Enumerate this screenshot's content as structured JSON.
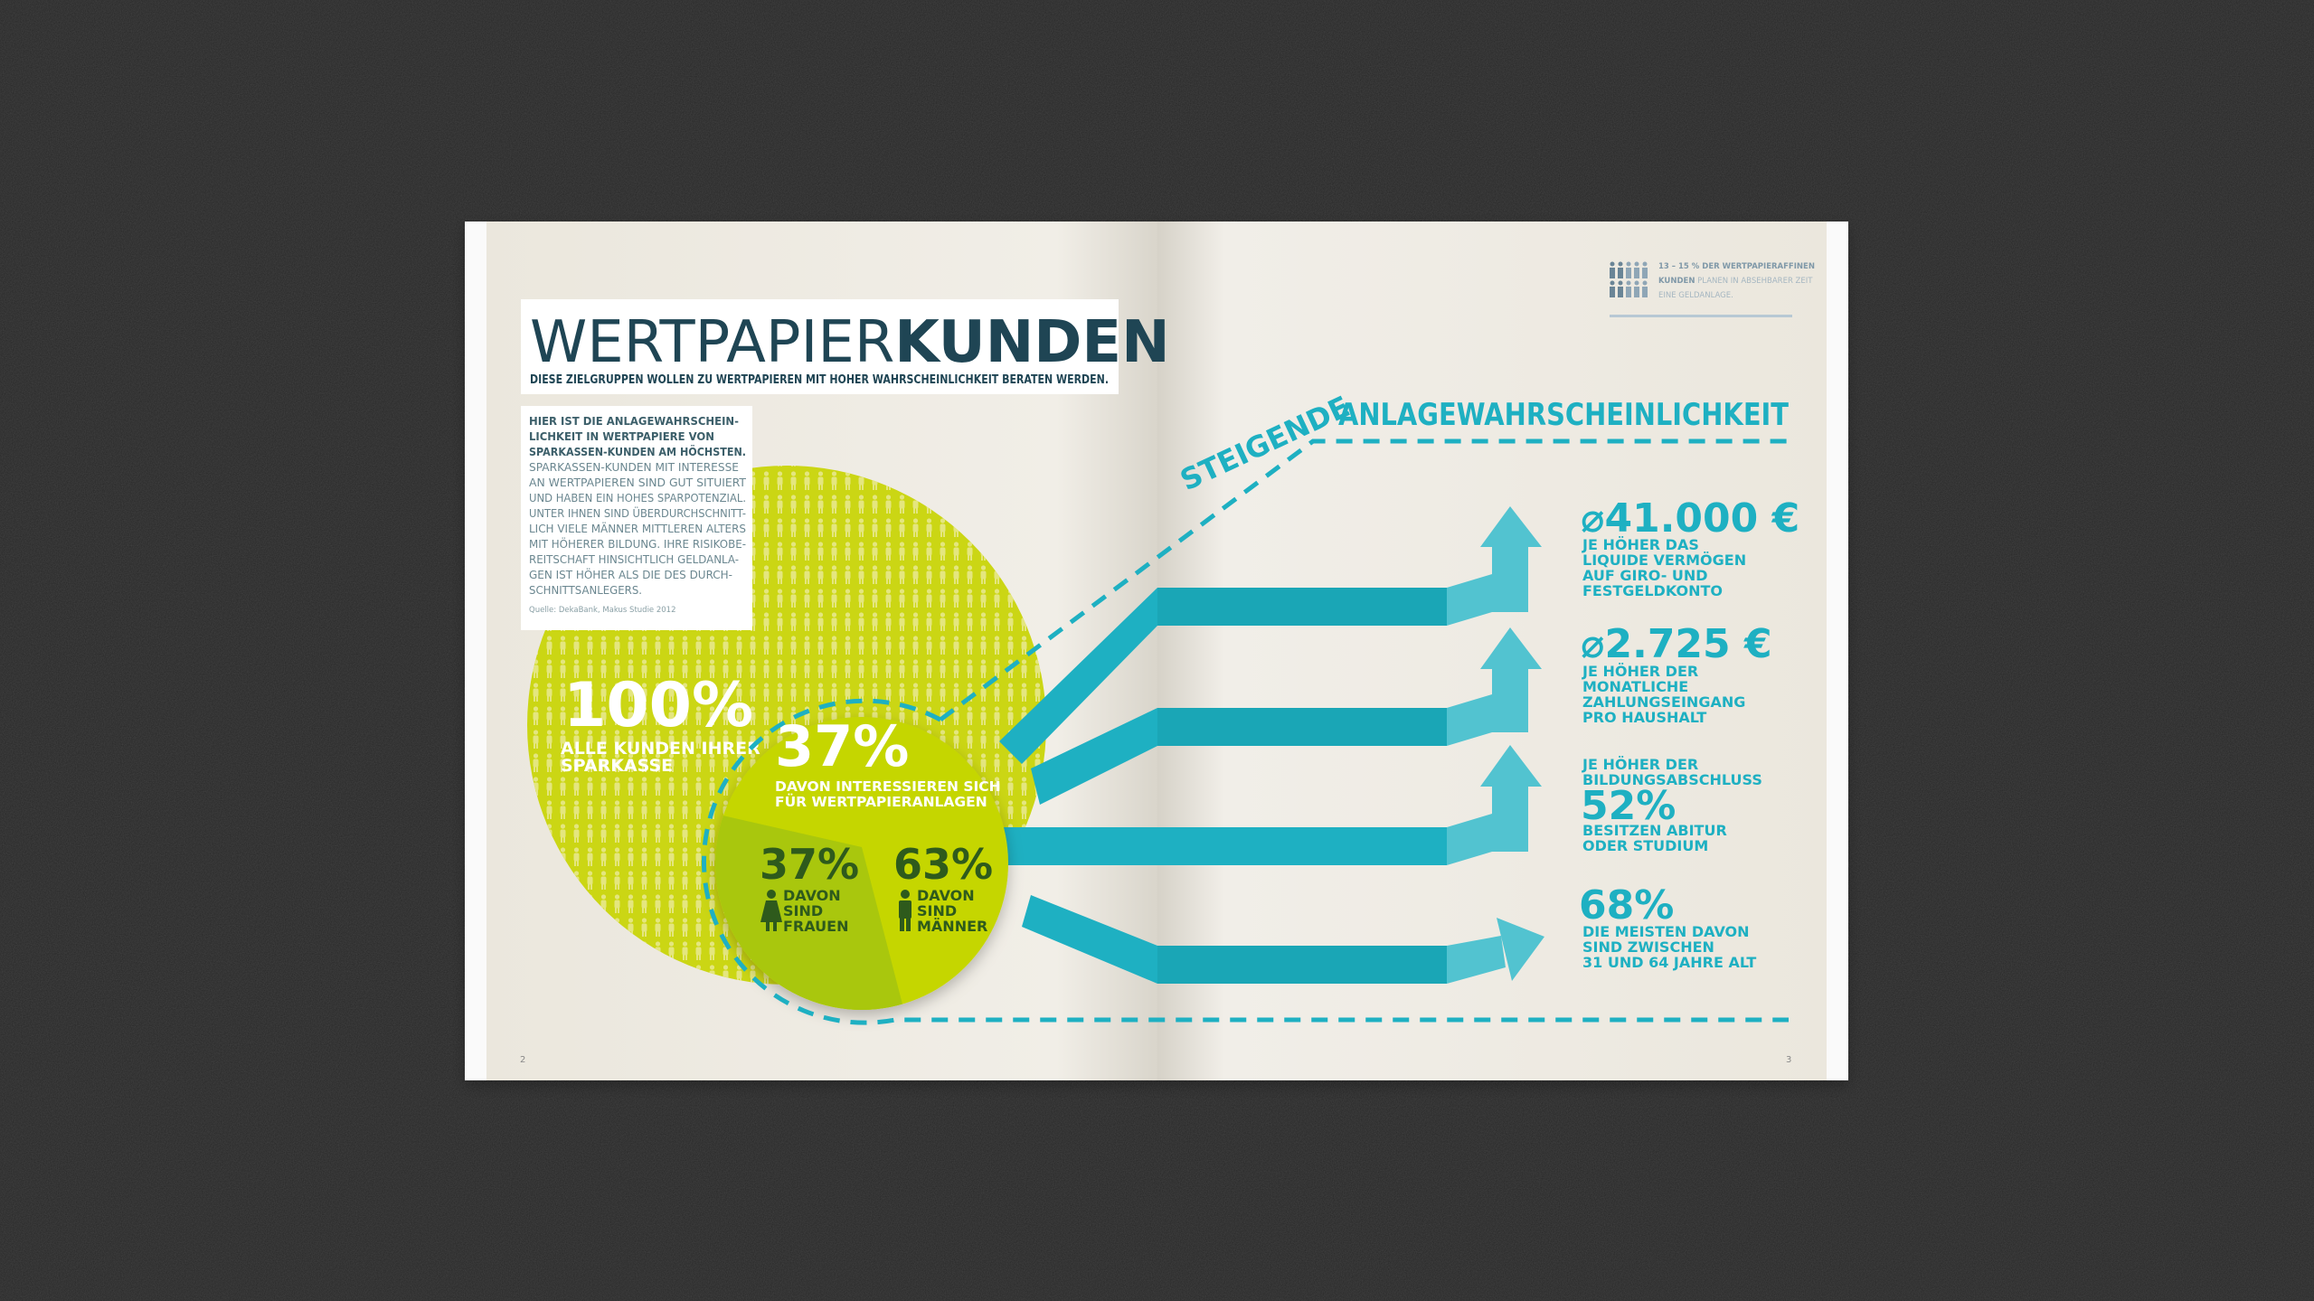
{
  "colors": {
    "background": "#262626",
    "paper": "#efece4",
    "title": "#1f4554",
    "teal": "#1eb0c2",
    "lime": "#cbd614",
    "lime_dark": "#a9c70c",
    "dark_green": "#2e5a1c"
  },
  "left_page": {
    "title_light": "WERTPAPIER",
    "title_bold": "KUNDEN",
    "subtitle": "DIESE ZIELGRUPPEN WOLLEN ZU WERTPAPIEREN MIT HOHER WAHRSCHEINLICHKEIT BERATEN WERDEN.",
    "intro_bold": [
      "HIER IST DIE ANLAGEWAHRSCHEIN-",
      "LICHKEIT IN WERTPAPIERE VON",
      "SPARKASSEN-KUNDEN AM HÖCHSTEN."
    ],
    "intro_body": [
      "SPARKASSEN-KUNDEN MIT INTERESSE",
      "AN WERTPAPIEREN SIND GUT SITUIERT",
      "UND HABEN EIN HOHES SPARPOTENZIAL.",
      "UNTER IHNEN SIND ÜBERDURCHSCHNITT-",
      "LICH VIELE MÄNNER MITTLEREN ALTERS",
      "MIT HÖHERER BILDUNG. IHRE RISIKOBE-",
      "REITSCHAFT HINSICHTLICH GELDANLA-",
      "GEN IST HÖHER ALS DIE DES DURCH-",
      "SCHNITTSANLEGERS."
    ],
    "source": "Quelle: DekaBank, Makus Studie 2012",
    "all_customers": {
      "value": "100%",
      "label": [
        "ALLE KUNDEN IHRER",
        "SPARKASSE"
      ]
    },
    "interested": {
      "value": "37%",
      "label": [
        "DAVON INTERESSIEREN SICH",
        "FÜR WERTPAPIERANLAGEN"
      ]
    },
    "women": {
      "value": "37%",
      "share": 37,
      "label": [
        "DAVON",
        "SIND",
        "FRAUEN"
      ],
      "icon": "woman-icon"
    },
    "men": {
      "value": "63%",
      "share": 63,
      "label": [
        "DAVON",
        "SIND",
        "MÄNNER"
      ],
      "icon": "man-icon"
    },
    "page_number": "2"
  },
  "right_page": {
    "legend": {
      "icon": "people-icon",
      "line1": "13 – 15 % DER WERTPAPIERAFFINEN",
      "line2_bold": "KUNDEN",
      "line2_rest": " PLANEN IN ABSEHBARER ZEIT",
      "line3": "EINE GELDANLAGE."
    },
    "heading_rotated": "STEIGENDE",
    "heading": "ANLAGEWAHRSCHEINLICHKEIT",
    "facts": [
      {
        "value": "⌀41.000 €",
        "label": [
          "JE HÖHER DAS",
          "LIQUIDE VERMÖGEN",
          "AUF GIRO- UND",
          "FESTGELDKONTO"
        ],
        "arrow": "arrow-up"
      },
      {
        "value": "⌀2.725 €",
        "label": [
          "JE HÖHER DER",
          "MONATLICHE",
          "ZAHLUNGSEINGANG",
          "PRO HAUSHALT"
        ],
        "arrow": "arrow-up"
      },
      {
        "pre_label": [
          "JE HÖHER DER",
          "BILDUNGSABSCHLUSS"
        ],
        "value": "52%",
        "label": [
          "BESITZEN ABITUR",
          "ODER STUDIUM"
        ],
        "arrow": "arrow-up"
      },
      {
        "value": "68%",
        "label": [
          "DIE MEISTEN DAVON",
          "SIND ZWISCHEN",
          "31 UND 64 JAHRE ALT"
        ],
        "arrow": "arrow-right"
      }
    ],
    "page_number": "3"
  }
}
